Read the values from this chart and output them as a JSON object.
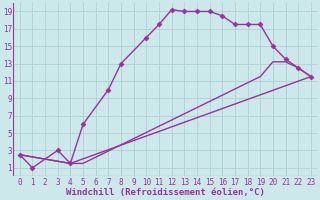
{
  "xlabel": "Windchill (Refroidissement éolien,°C)",
  "bg_color": "#cce8ea",
  "line_color": "#993399",
  "grid_color": "#a8cdd0",
  "xlim": [
    -0.5,
    23.5
  ],
  "ylim": [
    0,
    20
  ],
  "xticks": [
    0,
    1,
    2,
    3,
    4,
    5,
    6,
    7,
    8,
    9,
    10,
    11,
    12,
    13,
    14,
    15,
    16,
    17,
    18,
    19,
    20,
    21,
    22,
    23
  ],
  "yticks": [
    1,
    3,
    5,
    7,
    9,
    11,
    13,
    15,
    17,
    19
  ],
  "series1_x": [
    0,
    1,
    3,
    4,
    5,
    7,
    8,
    10,
    11,
    12,
    13,
    14,
    15,
    16,
    17,
    18,
    19,
    20,
    21,
    22,
    23
  ],
  "series1_y": [
    2.5,
    1.0,
    3.0,
    1.5,
    6.0,
    10.0,
    13.0,
    16.0,
    17.5,
    19.2,
    19.0,
    19.0,
    19.0,
    18.5,
    17.5,
    17.5,
    17.5,
    15.0,
    13.5,
    12.5,
    11.5
  ],
  "series2_x": [
    0,
    4,
    5,
    19,
    20,
    21,
    22,
    23
  ],
  "series2_y": [
    2.5,
    1.5,
    1.5,
    11.5,
    13.2,
    13.2,
    12.5,
    11.5
  ],
  "series3_x": [
    0,
    4,
    23
  ],
  "series3_y": [
    2.5,
    1.5,
    11.5
  ],
  "tick_fontsize": 5.5,
  "label_fontsize": 6.5,
  "linewidth": 1.0,
  "markersize": 2.5
}
